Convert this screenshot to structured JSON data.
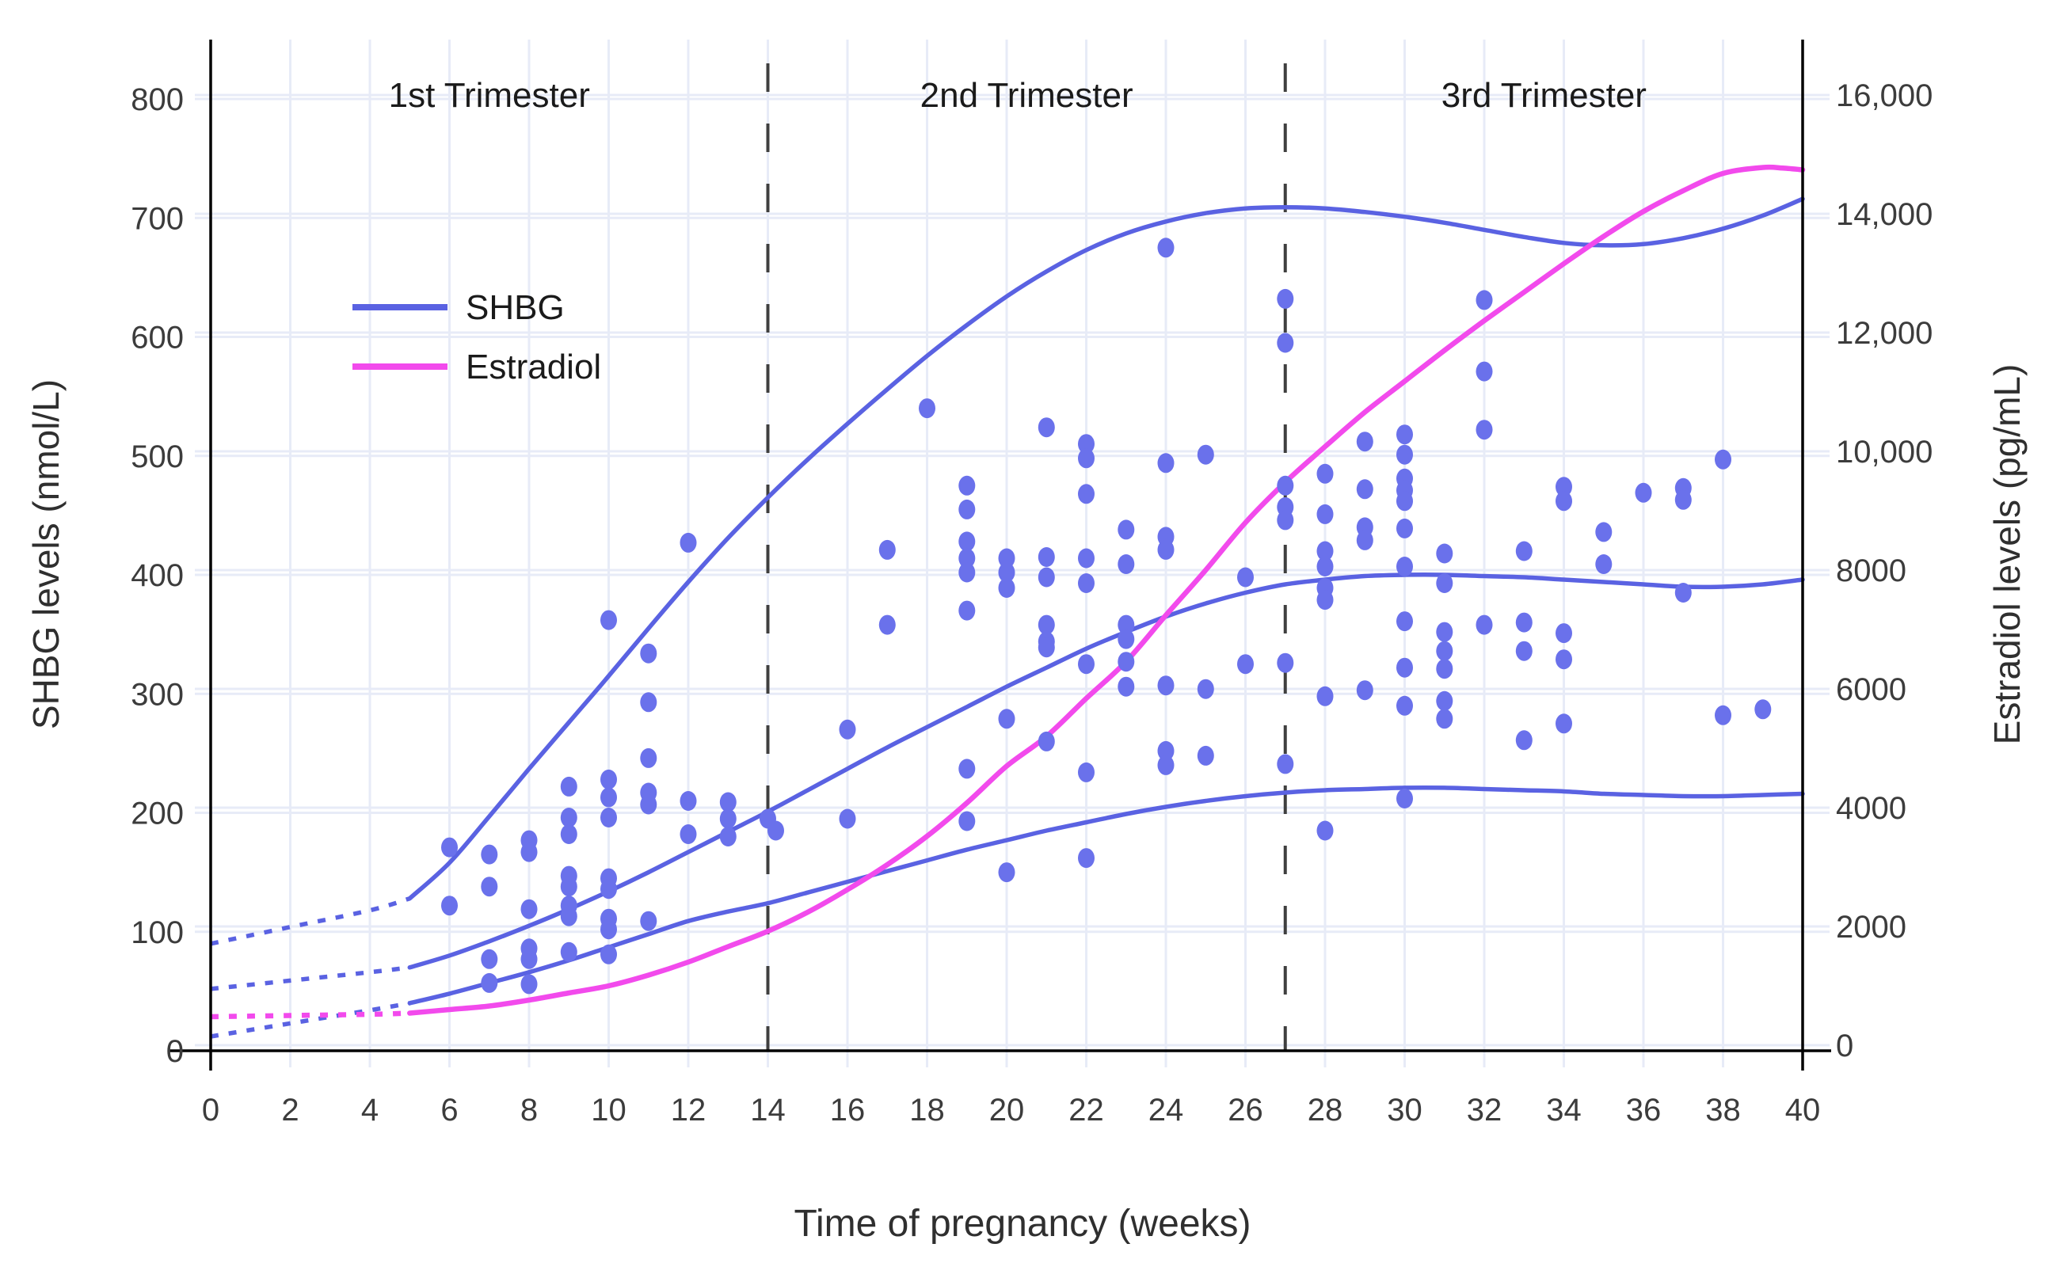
{
  "chart_data": {
    "type": "scatter",
    "title": "",
    "xlabel": "Time of pregnancy (weeks)",
    "ylabel_left": "SHBG levels (nmol/L)",
    "ylabel_right": "Estradiol levels (pg/mL)",
    "x_range": [
      0,
      40
    ],
    "y_left_range": [
      0,
      850
    ],
    "y_right_range": [
      0,
      17000
    ],
    "x_ticks": [
      0,
      2,
      4,
      6,
      8,
      10,
      12,
      14,
      16,
      18,
      20,
      22,
      24,
      26,
      28,
      30,
      32,
      34,
      36,
      38,
      40
    ],
    "y_left_ticks": [
      0,
      100,
      200,
      300,
      400,
      500,
      600,
      700,
      800
    ],
    "y_right_ticks": [
      "0",
      "2000",
      "4000",
      "6000",
      "8000",
      "10,000",
      "12,000",
      "14,000",
      "16,000"
    ],
    "grid": true,
    "trimester_dividers_weeks": [
      14,
      27
    ],
    "trimester_labels": [
      {
        "label": "1st Trimester",
        "week_center": 7
      },
      {
        "label": "2nd Trimester",
        "week_center": 20.5
      },
      {
        "label": "3rd Trimester",
        "week_center": 33.5
      }
    ],
    "legend": [
      {
        "label": "SHBG",
        "color": "#5a62e2"
      },
      {
        "label": "Estradiol",
        "color": "#f24aec"
      }
    ],
    "colors": {
      "shbg_line": "#5a62e2",
      "shbg_dot": "#6a71eb",
      "estradiol_line": "#f24aec",
      "divider": "#3f3f3f",
      "grid": "#e7ebf7",
      "axis": "#000000",
      "tick_text": "#3c3c3c",
      "label_text": "#1a1a1a"
    },
    "curves_dashed_before_week": 5,
    "shbg_upper_percentile_curve": [
      [
        0,
        90
      ],
      [
        2,
        104
      ],
      [
        4,
        118
      ],
      [
        5,
        128
      ],
      [
        6,
        158
      ],
      [
        7,
        197
      ],
      [
        8,
        237
      ],
      [
        9,
        276
      ],
      [
        10,
        315
      ],
      [
        11,
        355
      ],
      [
        12,
        394
      ],
      [
        13,
        431
      ],
      [
        14,
        465
      ],
      [
        15,
        497
      ],
      [
        16,
        527
      ],
      [
        17,
        556
      ],
      [
        18,
        584
      ],
      [
        19,
        610
      ],
      [
        20,
        634
      ],
      [
        21,
        655
      ],
      [
        22,
        673
      ],
      [
        23,
        687
      ],
      [
        24,
        697
      ],
      [
        25,
        704
      ],
      [
        26,
        708
      ],
      [
        27,
        709
      ],
      [
        28,
        708
      ],
      [
        29,
        705
      ],
      [
        30,
        701
      ],
      [
        31,
        696
      ],
      [
        32,
        690
      ],
      [
        33,
        684
      ],
      [
        34,
        679
      ],
      [
        35,
        677
      ],
      [
        36,
        678
      ],
      [
        37,
        683
      ],
      [
        38,
        691
      ],
      [
        39,
        702
      ],
      [
        40,
        716
      ]
    ],
    "shbg_median_curve": [
      [
        0,
        52
      ],
      [
        2,
        59
      ],
      [
        4,
        66
      ],
      [
        5,
        70
      ],
      [
        6,
        80
      ],
      [
        7,
        92
      ],
      [
        8,
        105
      ],
      [
        9,
        119
      ],
      [
        10,
        134
      ],
      [
        11,
        150
      ],
      [
        12,
        167
      ],
      [
        13,
        184
      ],
      [
        14,
        201
      ],
      [
        15,
        219
      ],
      [
        16,
        237
      ],
      [
        17,
        255
      ],
      [
        18,
        272
      ],
      [
        19,
        289
      ],
      [
        20,
        306
      ],
      [
        21,
        322
      ],
      [
        22,
        338
      ],
      [
        23,
        352
      ],
      [
        24,
        365
      ],
      [
        25,
        376
      ],
      [
        26,
        385
      ],
      [
        27,
        392
      ],
      [
        28,
        396
      ],
      [
        29,
        399
      ],
      [
        30,
        400
      ],
      [
        31,
        400
      ],
      [
        32,
        399
      ],
      [
        33,
        398
      ],
      [
        34,
        396
      ],
      [
        35,
        394
      ],
      [
        36,
        392
      ],
      [
        37,
        390
      ],
      [
        38,
        390
      ],
      [
        39,
        392
      ],
      [
        40,
        396
      ]
    ],
    "shbg_lower_percentile_curve": [
      [
        0,
        12
      ],
      [
        2,
        23
      ],
      [
        4,
        34
      ],
      [
        5,
        40
      ],
      [
        6,
        48
      ],
      [
        7,
        57
      ],
      [
        8,
        66
      ],
      [
        9,
        76
      ],
      [
        10,
        87
      ],
      [
        11,
        98
      ],
      [
        12,
        109
      ],
      [
        13,
        117
      ],
      [
        14,
        124
      ],
      [
        15,
        133
      ],
      [
        16,
        142
      ],
      [
        17,
        151
      ],
      [
        18,
        160
      ],
      [
        19,
        169
      ],
      [
        20,
        177
      ],
      [
        21,
        185
      ],
      [
        22,
        192
      ],
      [
        23,
        199
      ],
      [
        24,
        205
      ],
      [
        25,
        210
      ],
      [
        26,
        214
      ],
      [
        27,
        217
      ],
      [
        28,
        219
      ],
      [
        29,
        220
      ],
      [
        30,
        221
      ],
      [
        31,
        221
      ],
      [
        32,
        220
      ],
      [
        33,
        219
      ],
      [
        34,
        218
      ],
      [
        35,
        216
      ],
      [
        36,
        215
      ],
      [
        37,
        214
      ],
      [
        38,
        214
      ],
      [
        39,
        215
      ],
      [
        40,
        216
      ]
    ],
    "estradiol_curve_pg_ml": [
      [
        0,
        480
      ],
      [
        2,
        500
      ],
      [
        4,
        520
      ],
      [
        5,
        540
      ],
      [
        6,
        600
      ],
      [
        7,
        660
      ],
      [
        8,
        760
      ],
      [
        9,
        880
      ],
      [
        10,
        1000
      ],
      [
        11,
        1180
      ],
      [
        12,
        1400
      ],
      [
        13,
        1660
      ],
      [
        14,
        1920
      ],
      [
        15,
        2240
      ],
      [
        16,
        2620
      ],
      [
        17,
        3040
      ],
      [
        18,
        3520
      ],
      [
        19,
        4080
      ],
      [
        20,
        4700
      ],
      [
        21,
        5200
      ],
      [
        22,
        5840
      ],
      [
        23,
        6460
      ],
      [
        24,
        7240
      ],
      [
        25,
        8000
      ],
      [
        26,
        8800
      ],
      [
        27,
        9480
      ],
      [
        28,
        10080
      ],
      [
        29,
        10660
      ],
      [
        30,
        11180
      ],
      [
        31,
        11700
      ],
      [
        32,
        12200
      ],
      [
        33,
        12680
      ],
      [
        34,
        13160
      ],
      [
        35,
        13620
      ],
      [
        36,
        14040
      ],
      [
        37,
        14390
      ],
      [
        38,
        14680
      ],
      [
        39,
        14780
      ],
      [
        39.5,
        14770
      ],
      [
        40,
        14740
      ]
    ],
    "shbg_scatter_points": [
      [
        6,
        171
      ],
      [
        6,
        122
      ],
      [
        7,
        165
      ],
      [
        7,
        138
      ],
      [
        7,
        77
      ],
      [
        7,
        57
      ],
      [
        8,
        177
      ],
      [
        8,
        167
      ],
      [
        8,
        119
      ],
      [
        8,
        86
      ],
      [
        8,
        77
      ],
      [
        8,
        56
      ],
      [
        9,
        222
      ],
      [
        9,
        196
      ],
      [
        9,
        182
      ],
      [
        9,
        147
      ],
      [
        9,
        138
      ],
      [
        9,
        122
      ],
      [
        9,
        113
      ],
      [
        9,
        83
      ],
      [
        10,
        362
      ],
      [
        10,
        228
      ],
      [
        10,
        213
      ],
      [
        10,
        196
      ],
      [
        10,
        145
      ],
      [
        10,
        136
      ],
      [
        10,
        111
      ],
      [
        10,
        102
      ],
      [
        10,
        81
      ],
      [
        11,
        334
      ],
      [
        11,
        293
      ],
      [
        11,
        246
      ],
      [
        11,
        217
      ],
      [
        11,
        207
      ],
      [
        11,
        109
      ],
      [
        12,
        427
      ],
      [
        12,
        210
      ],
      [
        12,
        182
      ],
      [
        13,
        209
      ],
      [
        13,
        195
      ],
      [
        13,
        180
      ],
      [
        14,
        195
      ],
      [
        14.2,
        185
      ],
      [
        16,
        270
      ],
      [
        16,
        195
      ],
      [
        17,
        421
      ],
      [
        17,
        358
      ],
      [
        18,
        540
      ],
      [
        19,
        475
      ],
      [
        19,
        455
      ],
      [
        19,
        428
      ],
      [
        19,
        414
      ],
      [
        19,
        402
      ],
      [
        19,
        370
      ],
      [
        19,
        237
      ],
      [
        19,
        193
      ],
      [
        20,
        414
      ],
      [
        20,
        402
      ],
      [
        20,
        389
      ],
      [
        20,
        279
      ],
      [
        20,
        150
      ],
      [
        21,
        524
      ],
      [
        21,
        415
      ],
      [
        21,
        398
      ],
      [
        21,
        358
      ],
      [
        21,
        344
      ],
      [
        21,
        339
      ],
      [
        21,
        260
      ],
      [
        22,
        510
      ],
      [
        22,
        498
      ],
      [
        22,
        468
      ],
      [
        22,
        414
      ],
      [
        22,
        393
      ],
      [
        22,
        325
      ],
      [
        22,
        234
      ],
      [
        22,
        162
      ],
      [
        23,
        438
      ],
      [
        23,
        409
      ],
      [
        23,
        358
      ],
      [
        23,
        346
      ],
      [
        23,
        327
      ],
      [
        23,
        306
      ],
      [
        24,
        675
      ],
      [
        24,
        494
      ],
      [
        24,
        432
      ],
      [
        24,
        421
      ],
      [
        24,
        307
      ],
      [
        24,
        252
      ],
      [
        24,
        240
      ],
      [
        25,
        501
      ],
      [
        25,
        304
      ],
      [
        25,
        248
      ],
      [
        26,
        398
      ],
      [
        26,
        325
      ],
      [
        27,
        632
      ],
      [
        27,
        595
      ],
      [
        27,
        475
      ],
      [
        27,
        457
      ],
      [
        27,
        446
      ],
      [
        27,
        326
      ],
      [
        27,
        241
      ],
      [
        28,
        485
      ],
      [
        28,
        451
      ],
      [
        28,
        420
      ],
      [
        28,
        407
      ],
      [
        28,
        389
      ],
      [
        28,
        379
      ],
      [
        28,
        298
      ],
      [
        28,
        185
      ],
      [
        29,
        512
      ],
      [
        29,
        472
      ],
      [
        29,
        440
      ],
      [
        29,
        429
      ],
      [
        29,
        303
      ],
      [
        30,
        518
      ],
      [
        30,
        501
      ],
      [
        30,
        481
      ],
      [
        30,
        471
      ],
      [
        30,
        462
      ],
      [
        30,
        439
      ],
      [
        30,
        407
      ],
      [
        30,
        361
      ],
      [
        30,
        322
      ],
      [
        30,
        290
      ],
      [
        30,
        212
      ],
      [
        31,
        418
      ],
      [
        31,
        393
      ],
      [
        31,
        352
      ],
      [
        31,
        336
      ],
      [
        31,
        321
      ],
      [
        31,
        294
      ],
      [
        31,
        279
      ],
      [
        32,
        631
      ],
      [
        32,
        571
      ],
      [
        32,
        522
      ],
      [
        32,
        358
      ],
      [
        33,
        420
      ],
      [
        33,
        360
      ],
      [
        33,
        336
      ],
      [
        33,
        261
      ],
      [
        34,
        474
      ],
      [
        34,
        462
      ],
      [
        34,
        351
      ],
      [
        34,
        329
      ],
      [
        34,
        275
      ],
      [
        35,
        436
      ],
      [
        35,
        409
      ],
      [
        36,
        469
      ],
      [
        37,
        473
      ],
      [
        37,
        463
      ],
      [
        37,
        385
      ],
      [
        38,
        497
      ],
      [
        38,
        282
      ],
      [
        39,
        287
      ]
    ]
  }
}
